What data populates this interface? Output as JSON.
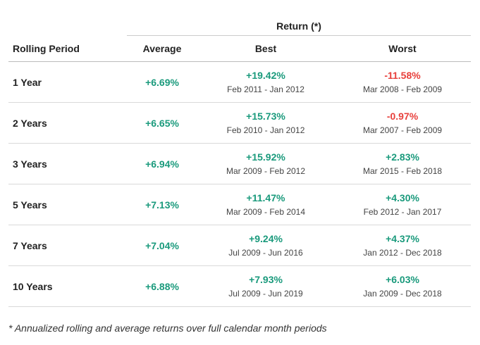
{
  "header": {
    "group_label": "Return (*)",
    "col_period": "Rolling Period",
    "col_average": "Average",
    "col_best": "Best",
    "col_worst": "Worst"
  },
  "rows": [
    {
      "period": "1 Year",
      "average": "+6.69%",
      "best_value": "+19.42%",
      "best_dates": "Feb 2011 - Jan 2012",
      "worst_value": "-11.58%",
      "worst_dates": "Mar 2008 - Feb 2009"
    },
    {
      "period": "2 Years",
      "average": "+6.65%",
      "best_value": "+15.73%",
      "best_dates": "Feb 2010 - Jan 2012",
      "worst_value": "-0.97%",
      "worst_dates": "Mar 2007 - Feb 2009"
    },
    {
      "period": "3 Years",
      "average": "+6.94%",
      "best_value": "+15.92%",
      "best_dates": "Mar 2009 - Feb 2012",
      "worst_value": "+2.83%",
      "worst_dates": "Mar 2015 - Feb 2018"
    },
    {
      "period": "5 Years",
      "average": "+7.13%",
      "best_value": "+11.47%",
      "best_dates": "Mar 2009 - Feb 2014",
      "worst_value": "+4.30%",
      "worst_dates": "Feb 2012 - Jan 2017"
    },
    {
      "period": "7 Years",
      "average": "+7.04%",
      "best_value": "+9.24%",
      "best_dates": "Jul 2009 - Jun 2016",
      "worst_value": "+4.37%",
      "worst_dates": "Jan 2012 - Dec 2018"
    },
    {
      "period": "10 Years",
      "average": "+6.88%",
      "best_value": "+7.93%",
      "best_dates": "Jul 2009 - Jun 2019",
      "worst_value": "+6.03%",
      "worst_dates": "Jan 2009 - Dec 2018"
    }
  ],
  "footnote": "* Annualized rolling and average returns over full calendar month periods",
  "colors": {
    "positive": "#1a9a7c",
    "negative": "#e8403c"
  }
}
